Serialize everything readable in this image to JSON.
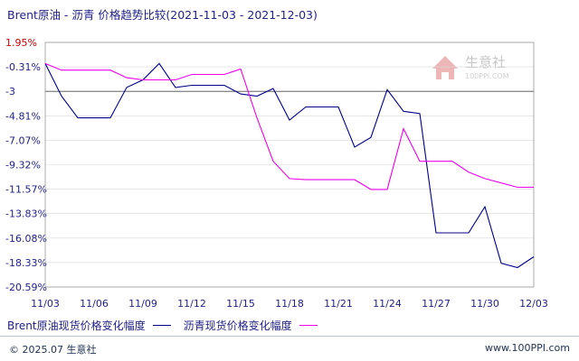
{
  "title": "Brent原油 - 沥青 价格趋势比较(2021-11-03 - 2021-12-03)",
  "footer": {
    "copyright": "© 2025.07 生意社",
    "site": "www.100PPI.com"
  },
  "watermark": {
    "name": "生意社",
    "domain": "100PPI.COM"
  },
  "colors": {
    "brent": "#00008B",
    "asphalt": "#EE00EE",
    "text": "#222288",
    "baseline": "#666666",
    "grid": "#d8d8d8"
  },
  "chart_data": {
    "type": "line",
    "title": "Brent原油 - 沥青 价格趋势比较(2021-11-03 - 2021-12-03)",
    "x": [
      "11/03",
      "11/04",
      "11/05",
      "11/06",
      "11/07",
      "11/08",
      "11/09",
      "11/10",
      "11/11",
      "11/12",
      "11/13",
      "11/14",
      "11/15",
      "11/16",
      "11/17",
      "11/18",
      "11/19",
      "11/20",
      "11/21",
      "11/22",
      "11/23",
      "11/24",
      "11/25",
      "11/26",
      "11/27",
      "11/28",
      "11/29",
      "11/30",
      "12/01",
      "12/02",
      "12/03"
    ],
    "x_ticks": [
      "11/03",
      "11/06",
      "11/09",
      "11/12",
      "11/15",
      "11/18",
      "11/21",
      "11/24",
      "11/27",
      "11/30",
      "12/03"
    ],
    "y_ticks": [
      "1.95%",
      "-0.31%",
      "-3",
      "-4.81%",
      "-7.07%",
      "-9.32%",
      "-11.57%",
      "-13.83%",
      "-16.08%",
      "-18.33%",
      "-20.59%"
    ],
    "ylim": [
      -20.59,
      1.95
    ],
    "baseline": -2.56,
    "series": [
      {
        "name": "Brent原油现货价格变化幅度",
        "values": [
          0.0,
          -3.0,
          -5.0,
          -5.0,
          -5.0,
          -2.2,
          -1.5,
          0.0,
          -2.2,
          -2.0,
          -2.0,
          -2.0,
          -2.8,
          -3.0,
          -2.3,
          -5.2,
          -4.0,
          -4.0,
          -4.0,
          -7.7,
          -6.8,
          -2.4,
          -4.4,
          -4.6,
          -15.6,
          -15.6,
          -15.6,
          -13.2,
          -18.4,
          -18.8,
          -17.8
        ]
      },
      {
        "name": "沥青现货价格变化幅度",
        "values": [
          0.0,
          -0.6,
          -0.6,
          -0.6,
          -0.6,
          -1.3,
          -1.5,
          -1.5,
          -1.5,
          -1.0,
          -1.0,
          -1.0,
          -0.5,
          -5.0,
          -9.0,
          -10.6,
          -10.7,
          -10.7,
          -10.7,
          -10.7,
          -11.6,
          -11.6,
          -6.0,
          -9.0,
          -9.0,
          -9.0,
          -10.0,
          -10.6,
          -11.0,
          -11.4,
          -11.4
        ]
      }
    ],
    "legend": "bottom-left",
    "grid": true
  }
}
